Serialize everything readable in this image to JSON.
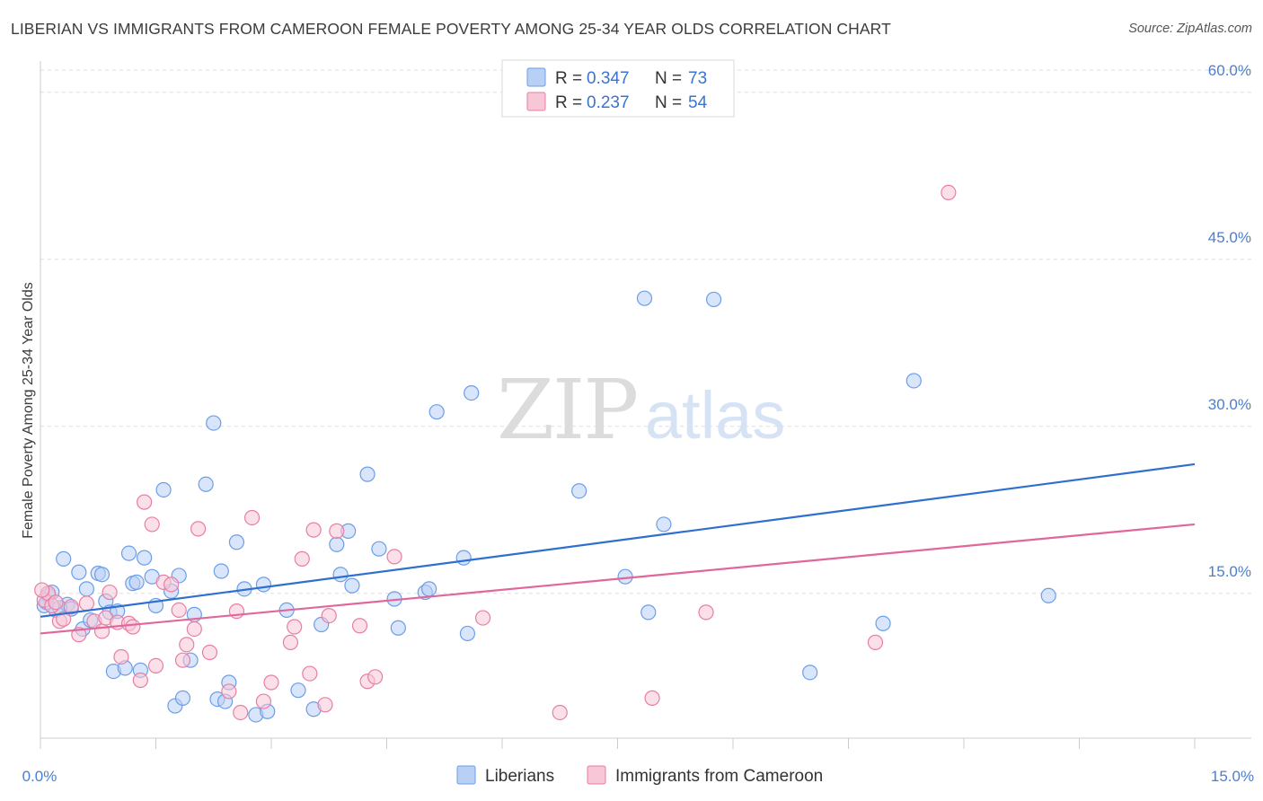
{
  "title": "LIBERIAN VS IMMIGRANTS FROM CAMEROON FEMALE POVERTY AMONG 25-34 YEAR OLDS CORRELATION CHART",
  "source": "Source: ZipAtlas.com",
  "watermark": {
    "zip": "ZIP",
    "atlas": "atlas"
  },
  "legend": {
    "r_label": "R =",
    "n_label": "N =",
    "rows": [
      {
        "r": "0.347",
        "n": "73",
        "color": "#6b9ee8",
        "fill": "#b9d0f5"
      },
      {
        "r": "0.237",
        "n": "54",
        "color": "#e87ea3",
        "fill": "#f7c6d7"
      }
    ]
  },
  "bottom_legend": [
    "Liberians",
    "Immigrants from Cameroon"
  ],
  "chart_data": {
    "type": "scatter",
    "title": "LIBERIAN VS IMMIGRANTS FROM CAMEROON FEMALE POVERTY AMONG 25-34 YEAR OLDS CORRELATION CHART",
    "xlabel": "",
    "ylabel": "Female Poverty Among 25-34 Year Olds",
    "xlim": [
      0,
      15
    ],
    "ylim": [
      2,
      62
    ],
    "x_tick_labels": [
      "0.0%",
      "15.0%"
    ],
    "y_ticks": [
      15,
      30,
      45,
      60
    ],
    "y_tick_labels": [
      "15.0%",
      "30.0%",
      "45.0%",
      "60.0%"
    ],
    "grid": true,
    "legend_position": "top-center",
    "series": [
      {
        "name": "Liberians",
        "color": "#6b9ee8",
        "fill": "#b9d0f5",
        "trend": {
          "x": [
            0,
            15
          ],
          "y": [
            12.9,
            26.6
          ]
        },
        "points": [
          [
            0.05,
            13.9
          ],
          [
            0.1,
            14.8
          ],
          [
            0.15,
            15.1
          ],
          [
            0.2,
            13.5
          ],
          [
            0.3,
            18.1
          ],
          [
            0.35,
            14.0
          ],
          [
            0.4,
            13.6
          ],
          [
            0.5,
            16.9
          ],
          [
            0.55,
            11.8
          ],
          [
            0.6,
            15.4
          ],
          [
            0.65,
            12.6
          ],
          [
            0.75,
            16.8
          ],
          [
            0.8,
            16.7
          ],
          [
            0.85,
            14.3
          ],
          [
            0.9,
            13.3
          ],
          [
            0.95,
            8.0
          ],
          [
            1.0,
            13.4
          ],
          [
            1.1,
            8.3
          ],
          [
            1.15,
            18.6
          ],
          [
            1.2,
            15.9
          ],
          [
            1.25,
            16.0
          ],
          [
            1.3,
            8.1
          ],
          [
            1.35,
            18.2
          ],
          [
            1.45,
            16.5
          ],
          [
            1.5,
            13.9
          ],
          [
            1.6,
            24.3
          ],
          [
            1.7,
            15.2
          ],
          [
            1.75,
            4.9
          ],
          [
            1.8,
            16.6
          ],
          [
            1.85,
            5.6
          ],
          [
            1.95,
            9.0
          ],
          [
            2.0,
            13.1
          ],
          [
            2.15,
            24.8
          ],
          [
            2.25,
            30.3
          ],
          [
            2.3,
            5.5
          ],
          [
            2.35,
            17.0
          ],
          [
            2.4,
            5.3
          ],
          [
            2.45,
            7.0
          ],
          [
            2.55,
            19.6
          ],
          [
            2.65,
            15.4
          ],
          [
            2.8,
            4.1
          ],
          [
            2.9,
            15.8
          ],
          [
            2.95,
            4.4
          ],
          [
            3.2,
            13.5
          ],
          [
            3.35,
            6.3
          ],
          [
            3.55,
            4.6
          ],
          [
            3.65,
            12.2
          ],
          [
            3.85,
            19.4
          ],
          [
            3.9,
            16.7
          ],
          [
            4.0,
            20.6
          ],
          [
            4.05,
            15.7
          ],
          [
            4.25,
            25.7
          ],
          [
            4.4,
            19.0
          ],
          [
            4.6,
            14.5
          ],
          [
            4.65,
            11.9
          ],
          [
            5.0,
            15.1
          ],
          [
            5.05,
            15.4
          ],
          [
            5.15,
            31.3
          ],
          [
            5.5,
            18.2
          ],
          [
            5.55,
            11.4
          ],
          [
            5.6,
            33.0
          ],
          [
            7.0,
            24.2
          ],
          [
            7.6,
            16.5
          ],
          [
            7.85,
            41.5
          ],
          [
            7.9,
            13.3
          ],
          [
            8.1,
            21.2
          ],
          [
            8.75,
            41.4
          ],
          [
            10.0,
            7.9
          ],
          [
            10.95,
            12.3
          ],
          [
            11.35,
            34.1
          ],
          [
            13.1,
            14.8
          ],
          [
            0.08,
            14.2
          ],
          [
            0.25,
            13.7
          ]
        ]
      },
      {
        "name": "Immigrants from Cameroon",
        "color": "#e87ea3",
        "fill": "#f7c6d7",
        "trend": {
          "x": [
            0,
            15
          ],
          "y": [
            11.4,
            21.2
          ]
        },
        "points": [
          [
            0.05,
            14.4
          ],
          [
            0.1,
            15.0
          ],
          [
            0.15,
            13.9
          ],
          [
            0.2,
            14.2
          ],
          [
            0.25,
            12.5
          ],
          [
            0.3,
            12.7
          ],
          [
            0.4,
            13.8
          ],
          [
            0.5,
            11.3
          ],
          [
            0.6,
            14.1
          ],
          [
            0.7,
            12.5
          ],
          [
            0.8,
            11.6
          ],
          [
            0.85,
            12.8
          ],
          [
            0.9,
            15.1
          ],
          [
            1.0,
            12.4
          ],
          [
            1.05,
            9.3
          ],
          [
            1.15,
            12.3
          ],
          [
            1.2,
            12.0
          ],
          [
            1.3,
            7.2
          ],
          [
            1.35,
            23.2
          ],
          [
            1.45,
            21.2
          ],
          [
            1.5,
            8.5
          ],
          [
            1.6,
            16.0
          ],
          [
            1.7,
            15.8
          ],
          [
            1.8,
            13.5
          ],
          [
            1.85,
            9.0
          ],
          [
            1.9,
            10.4
          ],
          [
            2.0,
            11.8
          ],
          [
            2.05,
            20.8
          ],
          [
            2.2,
            9.7
          ],
          [
            2.45,
            6.2
          ],
          [
            2.55,
            13.4
          ],
          [
            2.6,
            4.3
          ],
          [
            2.75,
            21.8
          ],
          [
            2.9,
            5.3
          ],
          [
            3.0,
            7.0
          ],
          [
            3.25,
            10.6
          ],
          [
            3.3,
            12.0
          ],
          [
            3.4,
            18.1
          ],
          [
            3.5,
            7.8
          ],
          [
            3.55,
            20.7
          ],
          [
            3.7,
            5.0
          ],
          [
            3.75,
            13.0
          ],
          [
            3.85,
            20.6
          ],
          [
            4.15,
            12.1
          ],
          [
            4.25,
            7.1
          ],
          [
            4.35,
            7.5
          ],
          [
            4.6,
            18.3
          ],
          [
            5.75,
            12.8
          ],
          [
            6.75,
            4.3
          ],
          [
            7.95,
            5.6
          ],
          [
            8.65,
            13.3
          ],
          [
            10.85,
            10.6
          ],
          [
            11.8,
            51.0
          ],
          [
            0.02,
            15.3
          ]
        ]
      }
    ]
  }
}
